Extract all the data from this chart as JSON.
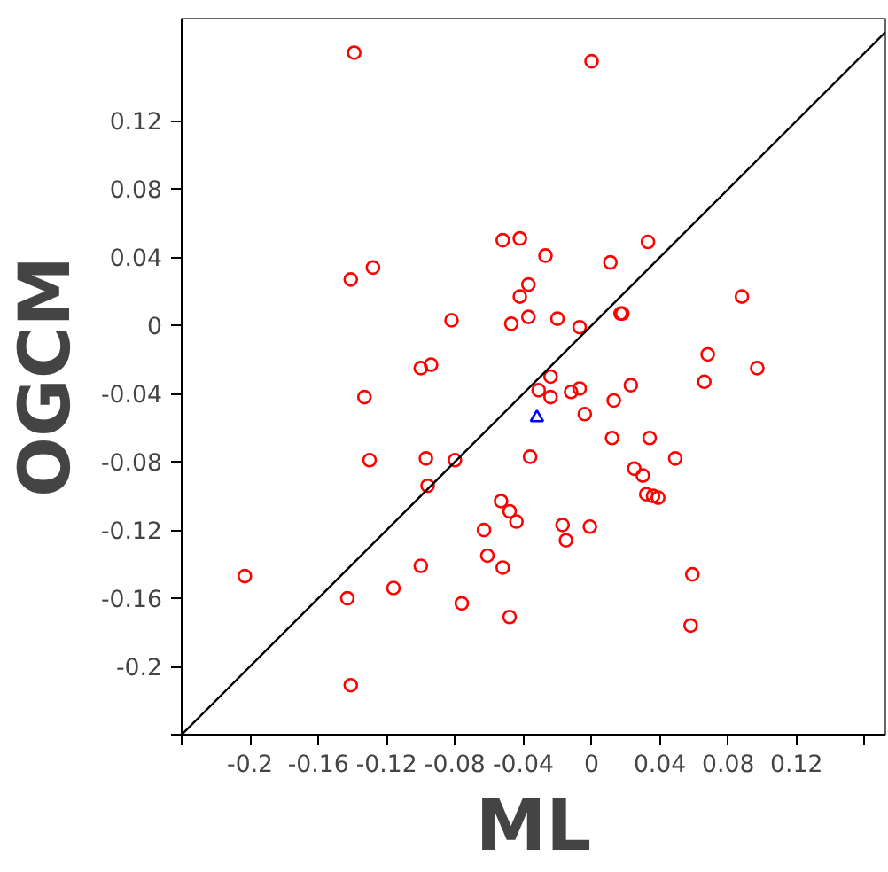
{
  "chart_data": {
    "type": "scatter",
    "xlabel": "ML",
    "ylabel": "OGCM",
    "xlim": [
      -0.24,
      0.172
    ],
    "ylim": [
      -0.24,
      0.18
    ],
    "xticks": [
      {
        "value": -0.24,
        "label": null
      },
      -0.2,
      -0.16,
      -0.12,
      -0.08,
      -0.04,
      0,
      0.04,
      0.08,
      0.12,
      {
        "value": 0.16,
        "label": null
      }
    ],
    "yticks": [
      {
        "value": -0.24,
        "label": null
      },
      -0.2,
      -0.16,
      -0.12,
      -0.08,
      -0.04,
      0,
      0.04,
      0.08,
      0.12
    ],
    "grid": false,
    "series": [
      {
        "color": "#ff0000",
        "marker": "circle",
        "x": [
          -0.139,
          -0.052,
          -0.042,
          -0.128,
          -0.141,
          -0.037,
          -0.042,
          -0.037,
          -0.047,
          -0.082,
          -0.094,
          -0.1,
          0.0,
          -0.027,
          0.033,
          0.011,
          -0.02,
          -0.007,
          0.017,
          0.018,
          0.088,
          0.068,
          0.097,
          -0.133,
          -0.13,
          -0.097,
          -0.08,
          -0.096,
          -0.036,
          -0.053,
          -0.048,
          -0.044,
          -0.063,
          -0.061,
          -0.052,
          -0.1,
          -0.116,
          -0.143,
          -0.076,
          -0.048,
          -0.203,
          -0.141,
          -0.024,
          -0.031,
          -0.024,
          -0.012,
          -0.007,
          0.023,
          0.013,
          -0.004,
          0.066,
          0.012,
          0.034,
          0.049,
          0.025,
          0.03,
          0.032,
          0.036,
          0.039,
          -0.017,
          -0.001,
          -0.015,
          0.059,
          0.058
        ],
        "values": [
          0.16,
          0.05,
          0.051,
          0.034,
          0.027,
          0.024,
          0.017,
          0.005,
          0.001,
          0.003,
          -0.023,
          -0.025,
          0.155,
          0.041,
          0.049,
          0.037,
          0.004,
          -0.001,
          0.007,
          0.007,
          0.017,
          -0.017,
          -0.025,
          -0.042,
          -0.079,
          -0.078,
          -0.079,
          -0.094,
          -0.077,
          -0.103,
          -0.109,
          -0.115,
          -0.12,
          -0.135,
          -0.142,
          -0.141,
          -0.154,
          -0.16,
          -0.163,
          -0.171,
          -0.147,
          -0.211,
          -0.03,
          -0.038,
          -0.042,
          -0.039,
          -0.037,
          -0.035,
          -0.044,
          -0.052,
          -0.033,
          -0.066,
          -0.066,
          -0.078,
          -0.084,
          -0.088,
          -0.099,
          -0.1,
          -0.101,
          -0.117,
          -0.118,
          -0.126,
          -0.146,
          -0.176
        ]
      },
      {
        "color": "#0000ff",
        "marker": "triangle",
        "x": [
          -0.032
        ],
        "values": [
          -0.054
        ]
      },
      {
        "type": "line",
        "color": "#000000",
        "marker": "none",
        "line_style": "solid",
        "x": [
          -0.24,
          0.172
        ],
        "values": [
          -0.24,
          0.172
        ]
      }
    ]
  }
}
